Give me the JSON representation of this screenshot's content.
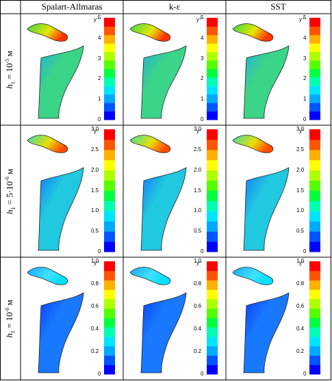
{
  "columns": [
    "Spalart-Allmaras",
    "k-ε",
    "SST"
  ],
  "rows": [
    {
      "label_main": "h",
      "label_sub": "1",
      "label_rest": " = 10",
      "label_exp": "-5",
      "label_unit": " м",
      "scale_title": "y⁺",
      "scale_ticks": [
        "5",
        "4",
        "3",
        "2",
        "1",
        "0"
      ],
      "scale_max": 5,
      "fill": "green"
    },
    {
      "label_main": "h",
      "label_sub": "1",
      "label_rest": " = 5·10",
      "label_exp": "-6",
      "label_unit": " м",
      "scale_title": "y⁺",
      "scale_ticks": [
        "3.0",
        "2.5",
        "2.0",
        "1.5",
        "1.0",
        "0.5",
        "0"
      ],
      "scale_max": 3,
      "fill": "cyan"
    },
    {
      "label_main": "h",
      "label_sub": "1",
      "label_rest": " = 10",
      "label_exp": "-6",
      "label_unit": " м",
      "scale_title": "y⁺",
      "scale_ticks": [
        "1.0",
        "0.8",
        "0.6",
        "0.4",
        "0.2",
        "0"
      ],
      "scale_max": 1,
      "fill": "blue"
    }
  ],
  "colors": {
    "colormap": [
      "#0000ff",
      "#0055ff",
      "#00aaff",
      "#00e5ff",
      "#00ffb0",
      "#00ff40",
      "#55ff00",
      "#b0ff00",
      "#ffff00",
      "#ffb000",
      "#ff5500",
      "#ff0000"
    ],
    "grid_line": "#000000"
  }
}
